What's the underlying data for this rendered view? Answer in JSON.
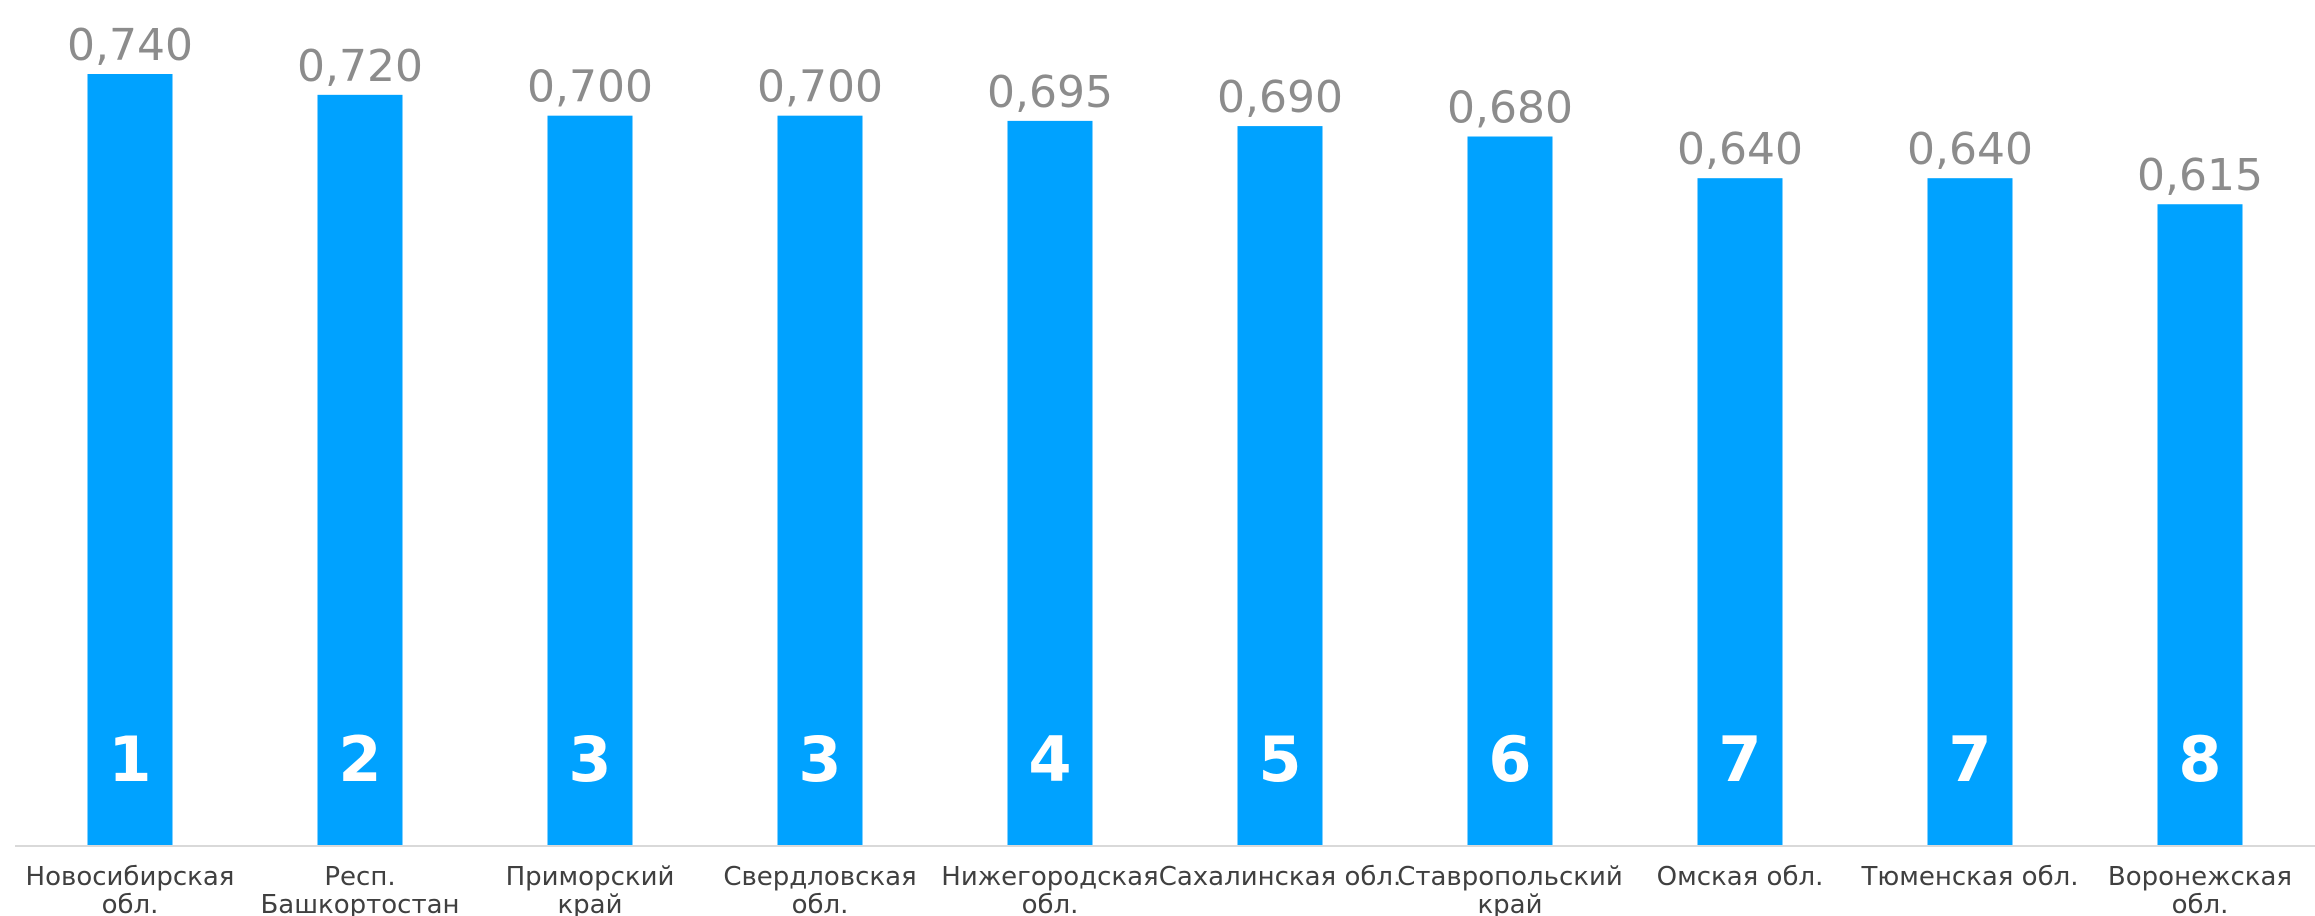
{
  "chart_data": {
    "type": "bar",
    "categories": [
      [
        "Новосибирская",
        "обл."
      ],
      [
        "Респ.",
        "Башкортостан"
      ],
      [
        "Приморский",
        "край"
      ],
      [
        "Свердловская",
        "обл."
      ],
      [
        "Нижегородская",
        "обл."
      ],
      [
        "Сахалинская обл."
      ],
      [
        "Ставропольский",
        "край"
      ],
      [
        "Омская обл."
      ],
      [
        "Тюменская обл."
      ],
      [
        "Воронежская",
        "обл."
      ]
    ],
    "values": [
      0.74,
      0.72,
      0.7,
      0.7,
      0.695,
      0.69,
      0.68,
      0.64,
      0.64,
      0.615
    ],
    "value_labels": [
      "0,740",
      "0,720",
      "0,700",
      "0,700",
      "0,695",
      "0,690",
      "0,680",
      "0,640",
      "0,640",
      "0,615"
    ],
    "ranks": [
      "1",
      "2",
      "3",
      "3",
      "4",
      "5",
      "6",
      "7",
      "7",
      "8"
    ],
    "ylim": [
      0,
      0.74
    ],
    "grid": false,
    "legend": "none",
    "colors": {
      "bar": "#00a2ff",
      "axis": "#d9d9d9",
      "value_text": "#8c8c8c",
      "category_text": "#404040",
      "rank_text": "#ffffff"
    }
  }
}
